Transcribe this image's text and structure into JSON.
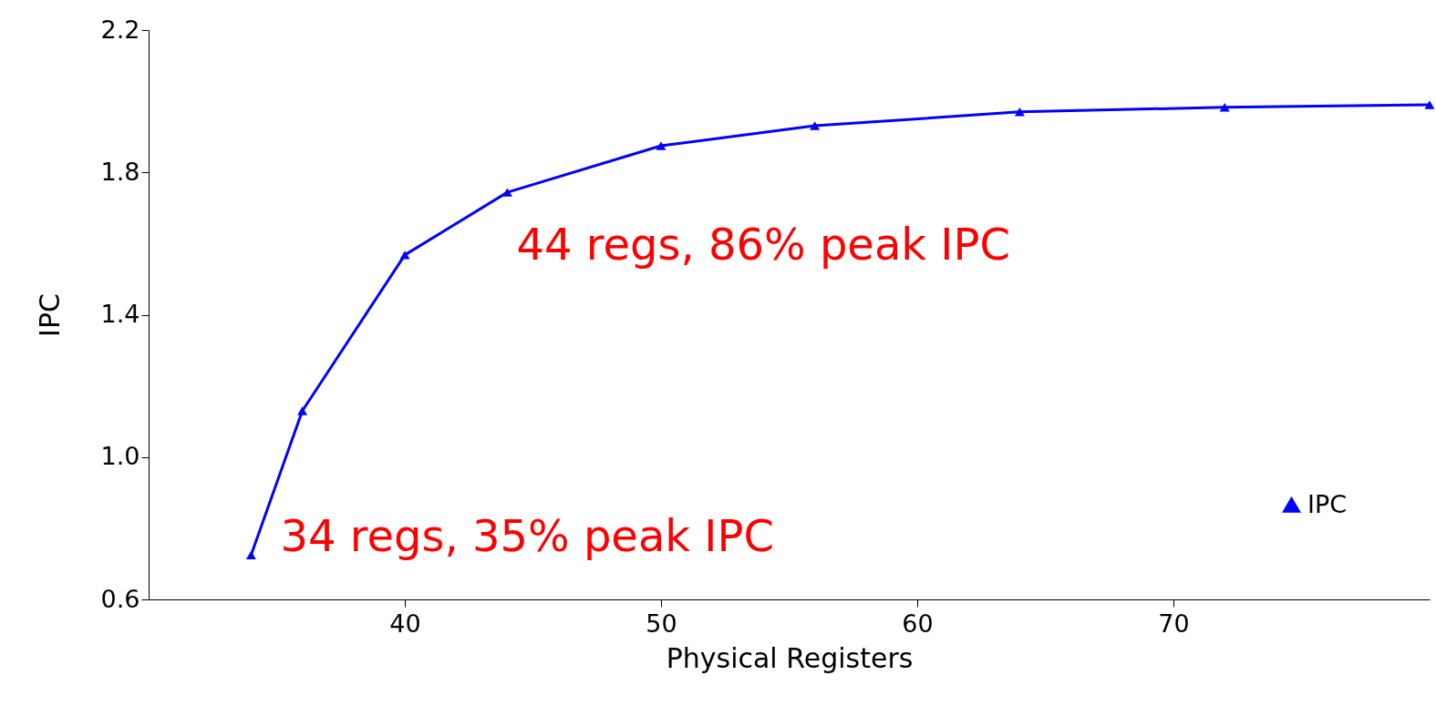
{
  "chart_data": {
    "type": "line",
    "xlabel": "Physical Registers",
    "ylabel": "IPC",
    "x": [
      34,
      36,
      40,
      44,
      50,
      56,
      64,
      72,
      80
    ],
    "series": [
      {
        "name": "IPC",
        "color": "#0000ff",
        "values": [
          0.725,
          1.13,
          1.568,
          1.744,
          1.875,
          1.931,
          1.97,
          1.983,
          1.99
        ]
      }
    ],
    "xlim": [
      30,
      80
    ],
    "xticks": [
      40,
      50,
      60,
      70
    ],
    "ylim": [
      0.6,
      2.2
    ],
    "yticks": [
      0.6,
      {
        "value": 1.0,
        "label": "1.0"
      },
      1.4,
      1.8,
      2.2
    ],
    "annotations": [
      {
        "text": "34 regs, 35% peak IPC",
        "x": 34,
        "y": 0.725
      },
      {
        "text": "44 regs, 86% peak IPC",
        "x": 44,
        "y": 1.744
      }
    ],
    "marker": "triangle",
    "line_style": "solid",
    "grid": false,
    "legend": "bottom right"
  }
}
